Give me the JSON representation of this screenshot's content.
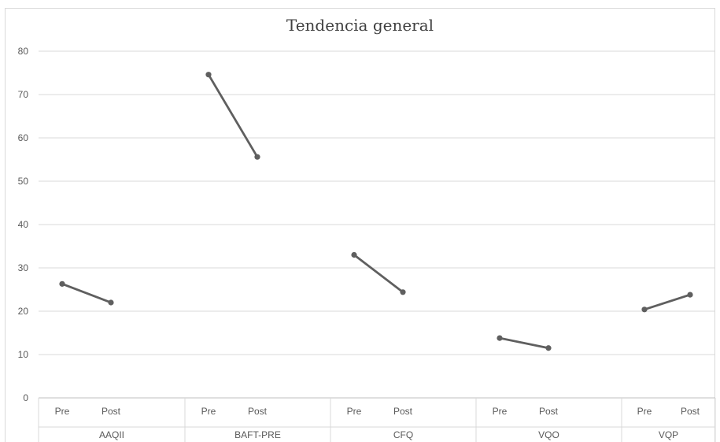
{
  "chart_data": {
    "type": "line",
    "title": "Tendencia general",
    "xlabel": "",
    "ylabel": "",
    "ylim": [
      0,
      80
    ],
    "yticks": [
      0,
      10,
      20,
      30,
      40,
      50,
      60,
      70,
      80
    ],
    "grid": true,
    "legend": "none",
    "series_color": "#5f5f5f",
    "groups": [
      {
        "name": "AAQII",
        "labels": [
          "Pre",
          "Post"
        ],
        "values": [
          26.3,
          22.0
        ]
      },
      {
        "name": "BAFT-PRE",
        "labels": [
          "Pre",
          "Post"
        ],
        "values": [
          74.6,
          55.6
        ]
      },
      {
        "name": "CFQ",
        "labels": [
          "Pre",
          "Post"
        ],
        "values": [
          33.0,
          24.4
        ]
      },
      {
        "name": "VQO",
        "labels": [
          "Pre",
          "Post"
        ],
        "values": [
          13.8,
          11.5
        ]
      },
      {
        "name": "VQP",
        "labels": [
          "Pre",
          "Post"
        ],
        "values": [
          20.4,
          23.8
        ]
      }
    ]
  }
}
